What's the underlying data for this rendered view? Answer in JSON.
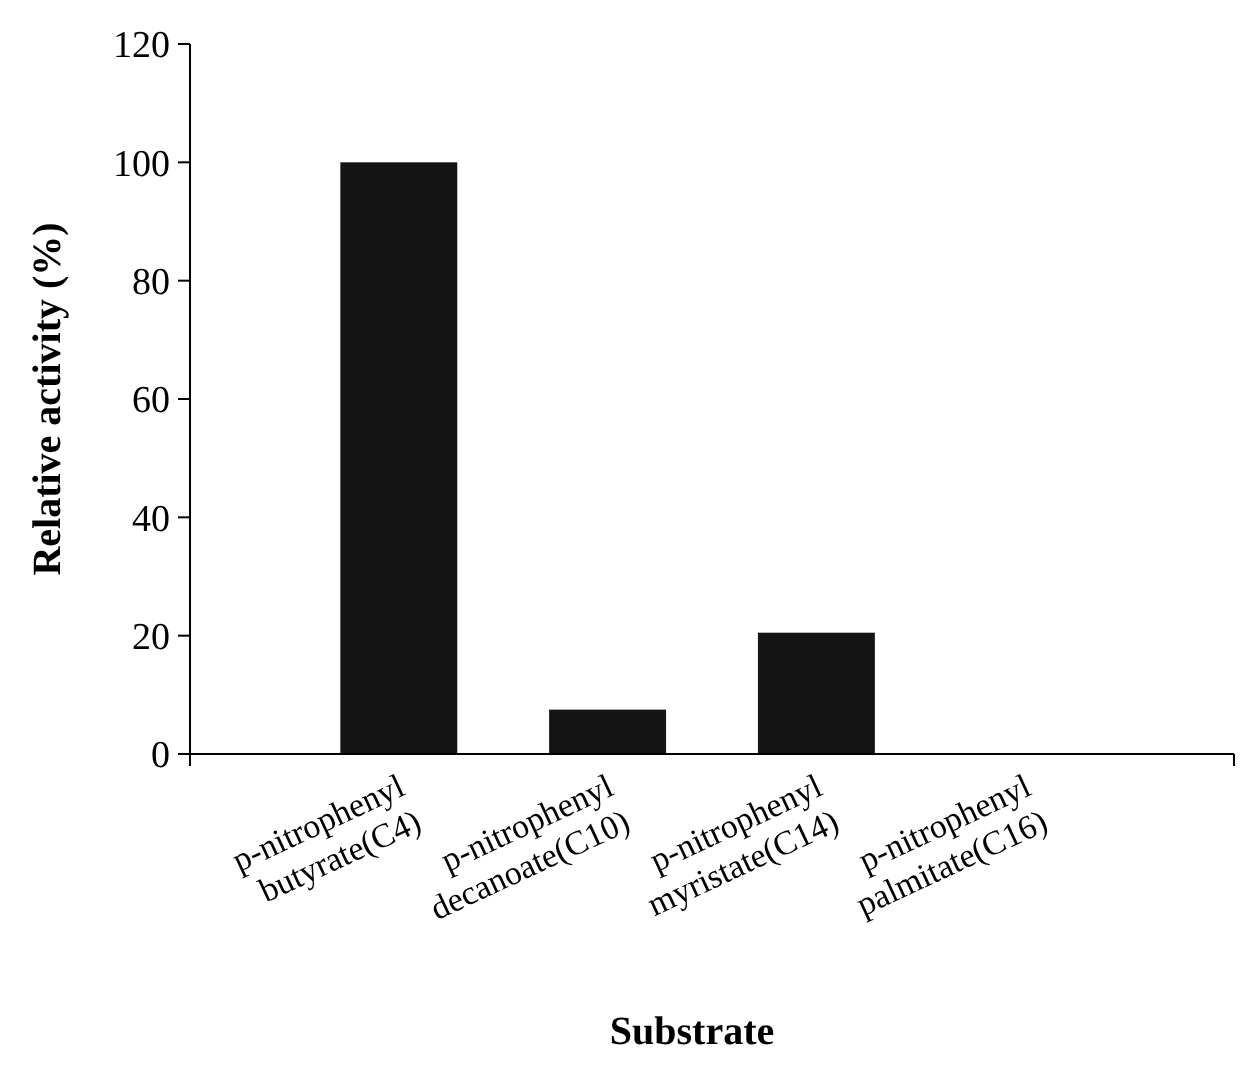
{
  "chart_data": {
    "type": "bar",
    "xlabel": "Substrate",
    "ylabel": "Relative activity (%)",
    "categories": [
      "p-nitrophenyl butyrate(C4)",
      "p-nitrophenyl decanoate(C10)",
      "p-nitrophenyl myristate(C14)",
      "p-nitrophenyl palmitate(C16)"
    ],
    "values": [
      100,
      7.5,
      20.5,
      0
    ],
    "color": "#141414",
    "ylim": [
      0,
      120
    ],
    "yticks": [
      0,
      20,
      40,
      60,
      80,
      100,
      120
    ],
    "grid": false
  }
}
